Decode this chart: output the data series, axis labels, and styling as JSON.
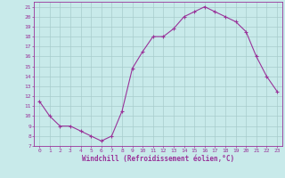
{
  "x": [
    0,
    1,
    2,
    3,
    4,
    5,
    6,
    7,
    8,
    9,
    10,
    11,
    12,
    13,
    14,
    15,
    16,
    17,
    18,
    19,
    20,
    21,
    22,
    23
  ],
  "y": [
    11.5,
    10.0,
    9.0,
    9.0,
    8.5,
    8.0,
    7.5,
    8.0,
    10.5,
    14.8,
    16.5,
    18.0,
    18.0,
    18.8,
    20.0,
    20.5,
    21.0,
    20.5,
    20.0,
    19.5,
    18.5,
    16.0,
    14.0,
    12.5
  ],
  "line_color": "#993399",
  "marker": "+",
  "bg_color": "#c8eaea",
  "grid_color": "#a8cccc",
  "tick_color": "#993399",
  "xlabel": "Windchill (Refroidissement éolien,°C)",
  "ylabel_ticks": [
    7,
    8,
    9,
    10,
    11,
    12,
    13,
    14,
    15,
    16,
    17,
    18,
    19,
    20,
    21
  ],
  "xlim": [
    -0.5,
    23.5
  ],
  "ylim": [
    7,
    21.5
  ],
  "xtick_labels": [
    "0",
    "1",
    "2",
    "3",
    "4",
    "5",
    "6",
    "7",
    "8",
    "9",
    "10",
    "11",
    "12",
    "13",
    "14",
    "15",
    "16",
    "17",
    "18",
    "19",
    "20",
    "21",
    "22",
    "23"
  ]
}
